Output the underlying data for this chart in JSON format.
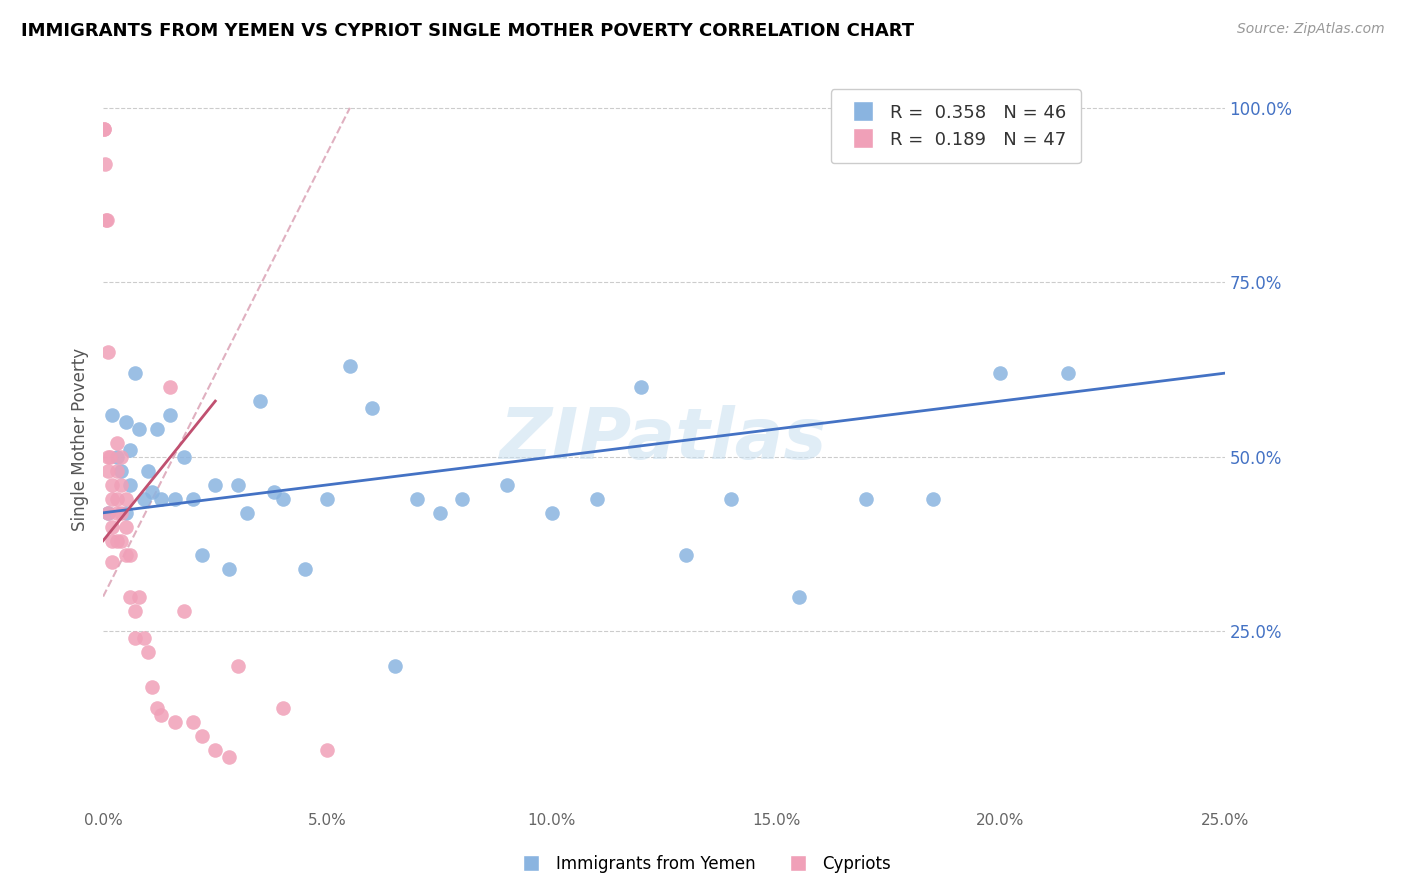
{
  "title": "IMMIGRANTS FROM YEMEN VS CYPRIOT SINGLE MOTHER POVERTY CORRELATION CHART",
  "source": "Source: ZipAtlas.com",
  "xlabel_blue": "Immigrants from Yemen",
  "xlabel_pink": "Cypriots",
  "ylabel": "Single Mother Poverty",
  "legend_blue_r": "0.358",
  "legend_blue_n": "46",
  "legend_pink_r": "0.189",
  "legend_pink_n": "47",
  "xlim": [
    0.0,
    0.25
  ],
  "ylim": [
    0.0,
    1.05
  ],
  "yticks_right": [
    0.25,
    0.5,
    0.75,
    1.0
  ],
  "ytick_labels_right": [
    "25.0%",
    "50.0%",
    "75.0%",
    "100.0%"
  ],
  "grid_lines": [
    0.25,
    0.5,
    0.75,
    1.0
  ],
  "xticks": [
    0.0,
    0.05,
    0.1,
    0.15,
    0.2,
    0.25
  ],
  "xtick_labels": [
    "0.0%",
    "5.0%",
    "10.0%",
    "15.0%",
    "20.0%",
    "25.0%"
  ],
  "blue_color": "#8ab4e0",
  "pink_color": "#f0a0b8",
  "blue_line_color": "#4472c4",
  "pink_line_color": "#c05070",
  "ref_line_color": "#e0b0c0",
  "watermark": "ZIPatlas",
  "blue_scatter_x": [
    0.001,
    0.002,
    0.003,
    0.004,
    0.005,
    0.005,
    0.006,
    0.006,
    0.007,
    0.008,
    0.009,
    0.01,
    0.011,
    0.012,
    0.013,
    0.015,
    0.016,
    0.018,
    0.02,
    0.022,
    0.025,
    0.028,
    0.03,
    0.032,
    0.035,
    0.038,
    0.04,
    0.045,
    0.05,
    0.055,
    0.06,
    0.065,
    0.07,
    0.075,
    0.08,
    0.09,
    0.1,
    0.11,
    0.12,
    0.13,
    0.14,
    0.155,
    0.17,
    0.185,
    0.2,
    0.215
  ],
  "blue_scatter_y": [
    0.42,
    0.56,
    0.5,
    0.48,
    0.55,
    0.42,
    0.51,
    0.46,
    0.62,
    0.54,
    0.44,
    0.48,
    0.45,
    0.54,
    0.44,
    0.56,
    0.44,
    0.5,
    0.44,
    0.36,
    0.46,
    0.34,
    0.46,
    0.42,
    0.58,
    0.45,
    0.44,
    0.34,
    0.44,
    0.63,
    0.57,
    0.2,
    0.44,
    0.42,
    0.44,
    0.46,
    0.42,
    0.44,
    0.6,
    0.36,
    0.44,
    0.3,
    0.44,
    0.44,
    0.62,
    0.62
  ],
  "pink_scatter_x": [
    0.0003,
    0.0003,
    0.0005,
    0.0006,
    0.0008,
    0.001,
    0.001,
    0.001,
    0.001,
    0.0015,
    0.002,
    0.002,
    0.002,
    0.002,
    0.002,
    0.003,
    0.003,
    0.003,
    0.003,
    0.003,
    0.004,
    0.004,
    0.004,
    0.004,
    0.005,
    0.005,
    0.005,
    0.006,
    0.006,
    0.007,
    0.007,
    0.008,
    0.009,
    0.01,
    0.011,
    0.012,
    0.013,
    0.015,
    0.016,
    0.018,
    0.02,
    0.022,
    0.025,
    0.028,
    0.03,
    0.04,
    0.05
  ],
  "pink_scatter_y": [
    0.97,
    0.97,
    0.92,
    0.84,
    0.84,
    0.65,
    0.5,
    0.48,
    0.42,
    0.5,
    0.46,
    0.44,
    0.4,
    0.38,
    0.35,
    0.52,
    0.48,
    0.44,
    0.42,
    0.38,
    0.5,
    0.46,
    0.42,
    0.38,
    0.44,
    0.4,
    0.36,
    0.36,
    0.3,
    0.28,
    0.24,
    0.3,
    0.24,
    0.22,
    0.17,
    0.14,
    0.13,
    0.6,
    0.12,
    0.28,
    0.12,
    0.1,
    0.08,
    0.07,
    0.2,
    0.14,
    0.08
  ],
  "blue_line_x0": 0.0,
  "blue_line_y0": 0.42,
  "blue_line_x1": 0.25,
  "blue_line_y1": 0.62,
  "pink_line_x0": 0.0,
  "pink_line_y0": 0.38,
  "pink_line_x1": 0.025,
  "pink_line_y1": 0.58,
  "ref_line_x0": 0.0,
  "ref_line_y0": 0.3,
  "ref_line_x1": 0.055,
  "ref_line_y1": 1.0
}
